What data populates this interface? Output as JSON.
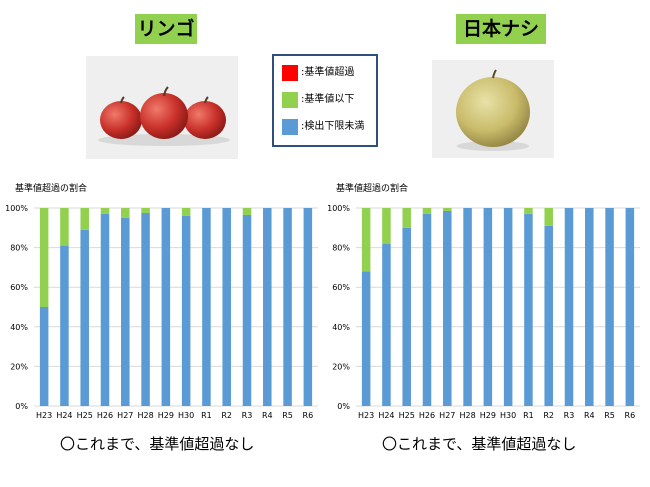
{
  "colors": {
    "exceed": "#ff0000",
    "below": "#92d050",
    "undetected": "#5b9bd5",
    "title_bg": "#92d050"
  },
  "legend": {
    "exceed": ":基準値超過",
    "below": ":基準値以下",
    "undetected": ":検出下限未満"
  },
  "apple": {
    "title": "リンゴ",
    "chart_label": "基準値超過の割合",
    "caption": "〇これまで、基準値超過なし"
  },
  "pear": {
    "title": "日本ナシ",
    "chart_label": "基準値超過の割合",
    "caption": "〇これまで、基準値超過なし"
  },
  "chart_data": [
    {
      "type": "bar",
      "stacked": true,
      "title": "基準値超過の割合",
      "categories": [
        "H23",
        "H24",
        "H25",
        "H26",
        "H27",
        "H28",
        "H29",
        "H30",
        "R1",
        "R2",
        "R3",
        "R4",
        "R5",
        "R6"
      ],
      "yticks": [
        "0%",
        "20%",
        "40%",
        "60%",
        "80%",
        "100%"
      ],
      "ylim": [
        0,
        100
      ],
      "series": [
        {
          "name": "検出下限未満",
          "values": [
            50,
            81,
            89,
            97,
            95,
            97.5,
            100,
            96,
            100,
            100,
            96.5,
            100,
            100,
            100
          ]
        },
        {
          "name": "基準値以下",
          "values": [
            50,
            19,
            11,
            3,
            5,
            2.5,
            0,
            4,
            0,
            0,
            3.5,
            0,
            0,
            0
          ]
        },
        {
          "name": "基準値超過",
          "values": [
            0,
            0,
            0,
            0,
            0,
            0,
            0,
            0,
            0,
            0,
            0,
            0,
            0,
            0
          ]
        }
      ]
    },
    {
      "type": "bar",
      "stacked": true,
      "title": "基準値超過の割合",
      "categories": [
        "H23",
        "H24",
        "H25",
        "H26",
        "H27",
        "H28",
        "H29",
        "H30",
        "R1",
        "R2",
        "R3",
        "R4",
        "R5",
        "R6"
      ],
      "yticks": [
        "0%",
        "20%",
        "40%",
        "60%",
        "80%",
        "100%"
      ],
      "ylim": [
        0,
        100
      ],
      "series": [
        {
          "name": "検出下限未満",
          "values": [
            68,
            82,
            90,
            97,
            98.5,
            100,
            100,
            100,
            97,
            91,
            100,
            100,
            100,
            100
          ]
        },
        {
          "name": "基準値以下",
          "values": [
            32,
            18,
            10,
            3,
            1.5,
            0,
            0,
            0,
            3,
            9,
            0,
            0,
            0,
            0
          ]
        },
        {
          "name": "基準値超過",
          "values": [
            0,
            0,
            0,
            0,
            0,
            0,
            0,
            0,
            0,
            0,
            0,
            0,
            0,
            0
          ]
        }
      ]
    }
  ]
}
